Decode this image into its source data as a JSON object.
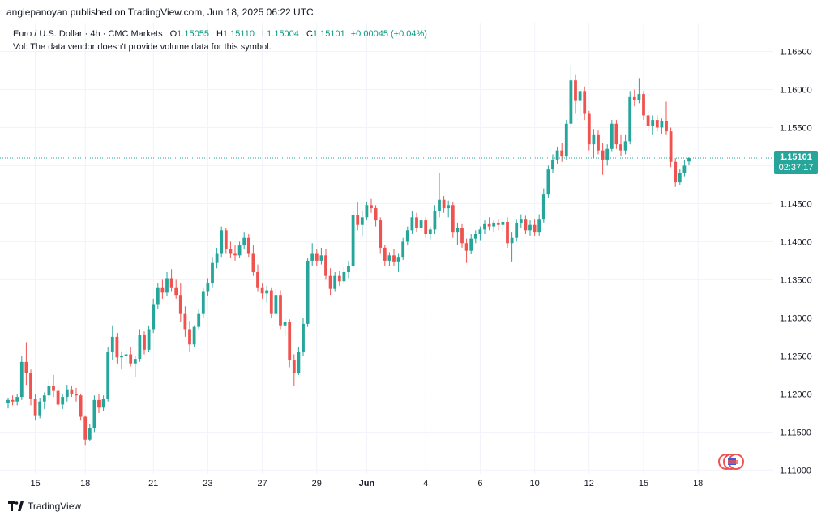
{
  "header": {
    "publisher_line": "angiepanoyan published on TradingView.com, Jun 18, 2025 06:22 UTC"
  },
  "legend": {
    "symbol_line": "Euro / U.S. Dollar · 4h · CMC Markets",
    "o_label": "O",
    "o_value": "1.15055",
    "h_label": "H",
    "h_value": "1.15110",
    "l_label": "L",
    "l_value": "1.15004",
    "c_label": "C",
    "c_value": "1.15101",
    "change": "+0.00045 (+0.04%)",
    "vol_line": "Vol: The data vendor doesn't provide volume data for this symbol."
  },
  "price_tag": {
    "price": "1.15101",
    "countdown": "02:37:17"
  },
  "footer": {
    "brand": "TradingView"
  },
  "colors": {
    "up": "#26a69a",
    "down": "#ef5350",
    "grid": "#f0f3fa",
    "axis_text": "#131722",
    "last_price_line": "#26a69a"
  },
  "chart_data": {
    "type": "candlestick",
    "ylim": [
      1.1095,
      1.1675
    ],
    "y_ticks": [
      1.165,
      1.16,
      1.155,
      1.15,
      1.145,
      1.14,
      1.135,
      1.13,
      1.125,
      1.12,
      1.115,
      1.11
    ],
    "y_tick_labels": [
      "1.16500",
      "1.16000",
      "1.15500",
      "1.15000",
      "1.14500",
      "1.14000",
      "1.13500",
      "1.13000",
      "1.12500",
      "1.12000",
      "1.11500",
      "1.11000"
    ],
    "x_ticks": [
      {
        "label": "15",
        "index": 6
      },
      {
        "label": "18",
        "index": 17
      },
      {
        "label": "21",
        "index": 32
      },
      {
        "label": "23",
        "index": 44
      },
      {
        "label": "27",
        "index": 56
      },
      {
        "label": "29",
        "index": 68
      },
      {
        "label": "Jun",
        "index": 79
      },
      {
        "label": "4",
        "index": 92
      },
      {
        "label": "6",
        "index": 104
      },
      {
        "label": "10",
        "index": 116
      },
      {
        "label": "12",
        "index": 128
      },
      {
        "label": "15",
        "index": 140
      },
      {
        "label": "18",
        "index": 152
      }
    ],
    "last_price": 1.15101,
    "grid": true,
    "candles": [
      [
        1.1188,
        1.1195,
        1.1181,
        1.1192
      ],
      [
        1.1192,
        1.1198,
        1.1185,
        1.119
      ],
      [
        1.119,
        1.12,
        1.1185,
        1.1196
      ],
      [
        1.1196,
        1.125,
        1.1192,
        1.1242
      ],
      [
        1.1242,
        1.1268,
        1.1212,
        1.1228
      ],
      [
        1.1228,
        1.1232,
        1.1185,
        1.1194
      ],
      [
        1.1194,
        1.12,
        1.1165,
        1.1172
      ],
      [
        1.1172,
        1.1195,
        1.1168,
        1.119
      ],
      [
        1.119,
        1.1202,
        1.118,
        1.1198
      ],
      [
        1.1198,
        1.1218,
        1.1192,
        1.121
      ],
      [
        1.121,
        1.1225,
        1.1196,
        1.1204
      ],
      [
        1.1204,
        1.1208,
        1.1182,
        1.1186
      ],
      [
        1.1186,
        1.12,
        1.118,
        1.1196
      ],
      [
        1.1196,
        1.1212,
        1.119,
        1.1206
      ],
      [
        1.1206,
        1.121,
        1.1196,
        1.12
      ],
      [
        1.12,
        1.1208,
        1.119,
        1.1198
      ],
      [
        1.1198,
        1.12,
        1.1165,
        1.117
      ],
      [
        1.117,
        1.1172,
        1.1132,
        1.114
      ],
      [
        1.114,
        1.116,
        1.1138,
        1.1155
      ],
      [
        1.1155,
        1.1198,
        1.115,
        1.1192
      ],
      [
        1.1192,
        1.12,
        1.1175,
        1.1182
      ],
      [
        1.1182,
        1.1198,
        1.1178,
        1.1193
      ],
      [
        1.1193,
        1.1262,
        1.119,
        1.1255
      ],
      [
        1.1255,
        1.129,
        1.1245,
        1.1275
      ],
      [
        1.1275,
        1.128,
        1.124,
        1.1248
      ],
      [
        1.1248,
        1.1256,
        1.1232,
        1.125
      ],
      [
        1.125,
        1.1258,
        1.124,
        1.1252
      ],
      [
        1.1252,
        1.1262,
        1.1236,
        1.124
      ],
      [
        1.124,
        1.125,
        1.1222,
        1.1246
      ],
      [
        1.1246,
        1.1285,
        1.1242,
        1.1278
      ],
      [
        1.1278,
        1.1282,
        1.1252,
        1.1258
      ],
      [
        1.1258,
        1.129,
        1.1255,
        1.1285
      ],
      [
        1.1285,
        1.1325,
        1.128,
        1.1318
      ],
      [
        1.1318,
        1.1345,
        1.1312,
        1.134
      ],
      [
        1.134,
        1.135,
        1.1325,
        1.1333
      ],
      [
        1.1333,
        1.136,
        1.1328,
        1.1352
      ],
      [
        1.1352,
        1.1364,
        1.1335,
        1.134
      ],
      [
        1.134,
        1.135,
        1.1325,
        1.133
      ],
      [
        1.133,
        1.1345,
        1.1295,
        1.1305
      ],
      [
        1.1305,
        1.1315,
        1.1275,
        1.1285
      ],
      [
        1.1285,
        1.1296,
        1.1255,
        1.1265
      ],
      [
        1.1265,
        1.129,
        1.1262,
        1.1288
      ],
      [
        1.1288,
        1.1312,
        1.1285,
        1.1305
      ],
      [
        1.1305,
        1.134,
        1.13,
        1.1335
      ],
      [
        1.1335,
        1.1352,
        1.1328,
        1.1345
      ],
      [
        1.1345,
        1.138,
        1.134,
        1.1372
      ],
      [
        1.1372,
        1.1392,
        1.1365,
        1.1385
      ],
      [
        1.1385,
        1.142,
        1.138,
        1.1415
      ],
      [
        1.1415,
        1.1418,
        1.1385,
        1.139
      ],
      [
        1.139,
        1.14,
        1.1378,
        1.1385
      ],
      [
        1.1385,
        1.1395,
        1.1375,
        1.1382
      ],
      [
        1.1382,
        1.14,
        1.1378,
        1.1395
      ],
      [
        1.1395,
        1.1412,
        1.139,
        1.1405
      ],
      [
        1.1405,
        1.141,
        1.138,
        1.1385
      ],
      [
        1.1385,
        1.1395,
        1.1355,
        1.136
      ],
      [
        1.136,
        1.137,
        1.1335,
        1.134
      ],
      [
        1.134,
        1.1345,
        1.1325,
        1.1332
      ],
      [
        1.1332,
        1.1342,
        1.132,
        1.1336
      ],
      [
        1.1336,
        1.134,
        1.13,
        1.1305
      ],
      [
        1.1305,
        1.1338,
        1.1302,
        1.133
      ],
      [
        1.133,
        1.1336,
        1.1285,
        1.129
      ],
      [
        1.129,
        1.13,
        1.1275,
        1.1295
      ],
      [
        1.1295,
        1.1298,
        1.1235,
        1.1245
      ],
      [
        1.1245,
        1.1252,
        1.121,
        1.1228
      ],
      [
        1.1228,
        1.1262,
        1.1225,
        1.1255
      ],
      [
        1.1255,
        1.13,
        1.125,
        1.1292
      ],
      [
        1.1292,
        1.1378,
        1.1288,
        1.1375
      ],
      [
        1.1375,
        1.1398,
        1.1368,
        1.1385
      ],
      [
        1.1385,
        1.139,
        1.1368,
        1.1375
      ],
      [
        1.1375,
        1.1392,
        1.137,
        1.1382
      ],
      [
        1.1382,
        1.139,
        1.135,
        1.1355
      ],
      [
        1.1355,
        1.1365,
        1.133,
        1.1338
      ],
      [
        1.1338,
        1.136,
        1.1335,
        1.1355
      ],
      [
        1.1355,
        1.1362,
        1.1342,
        1.1348
      ],
      [
        1.1348,
        1.1366,
        1.1344,
        1.136
      ],
      [
        1.136,
        1.1375,
        1.1352,
        1.1368
      ],
      [
        1.1368,
        1.144,
        1.1365,
        1.1435
      ],
      [
        1.1435,
        1.1452,
        1.1415,
        1.1422
      ],
      [
        1.1422,
        1.144,
        1.1408,
        1.1432
      ],
      [
        1.1432,
        1.1452,
        1.1428,
        1.1448
      ],
      [
        1.1448,
        1.1456,
        1.1438,
        1.1444
      ],
      [
        1.1444,
        1.1448,
        1.142,
        1.1428
      ],
      [
        1.1428,
        1.1432,
        1.1385,
        1.1392
      ],
      [
        1.1392,
        1.1396,
        1.1368,
        1.1375
      ],
      [
        1.1375,
        1.1386,
        1.1368,
        1.1382
      ],
      [
        1.1382,
        1.139,
        1.1368,
        1.1374
      ],
      [
        1.1374,
        1.1385,
        1.136,
        1.138
      ],
      [
        1.138,
        1.1405,
        1.1376,
        1.14
      ],
      [
        1.14,
        1.142,
        1.1395,
        1.1415
      ],
      [
        1.1415,
        1.144,
        1.141,
        1.1432
      ],
      [
        1.1432,
        1.1438,
        1.1412,
        1.1418
      ],
      [
        1.1418,
        1.1432,
        1.1414,
        1.1428
      ],
      [
        1.1428,
        1.1432,
        1.1405,
        1.141
      ],
      [
        1.141,
        1.142,
        1.1403,
        1.1416
      ],
      [
        1.1416,
        1.1448,
        1.141,
        1.144
      ],
      [
        1.144,
        1.149,
        1.1432,
        1.1455
      ],
      [
        1.1455,
        1.146,
        1.1438,
        1.1444
      ],
      [
        1.1444,
        1.1454,
        1.1432,
        1.1448
      ],
      [
        1.1448,
        1.1452,
        1.1405,
        1.1412
      ],
      [
        1.1412,
        1.1425,
        1.1396,
        1.1418
      ],
      [
        1.1418,
        1.1424,
        1.1392,
        1.1398
      ],
      [
        1.1398,
        1.1404,
        1.1372,
        1.1388
      ],
      [
        1.1388,
        1.141,
        1.1384,
        1.1404
      ],
      [
        1.1404,
        1.1415,
        1.1398,
        1.141
      ],
      [
        1.141,
        1.142,
        1.1402,
        1.1416
      ],
      [
        1.1416,
        1.1428,
        1.141,
        1.1424
      ],
      [
        1.1424,
        1.1432,
        1.1415,
        1.142
      ],
      [
        1.142,
        1.1428,
        1.1412,
        1.1425
      ],
      [
        1.1425,
        1.143,
        1.1415,
        1.1422
      ],
      [
        1.1422,
        1.143,
        1.1412,
        1.1426
      ],
      [
        1.1426,
        1.1432,
        1.1392,
        1.1398
      ],
      [
        1.1398,
        1.1412,
        1.1374,
        1.1405
      ],
      [
        1.1405,
        1.143,
        1.14,
        1.1425
      ],
      [
        1.1425,
        1.1436,
        1.1418,
        1.143
      ],
      [
        1.143,
        1.1434,
        1.141,
        1.1415
      ],
      [
        1.1415,
        1.1428,
        1.1408,
        1.1422
      ],
      [
        1.1422,
        1.143,
        1.1408,
        1.1412
      ],
      [
        1.1412,
        1.1436,
        1.1408,
        1.143
      ],
      [
        1.143,
        1.147,
        1.1425,
        1.1462
      ],
      [
        1.1462,
        1.15,
        1.1458,
        1.1495
      ],
      [
        1.1495,
        1.1515,
        1.149,
        1.1508
      ],
      [
        1.1508,
        1.1525,
        1.1502,
        1.152
      ],
      [
        1.152,
        1.153,
        1.1505,
        1.1512
      ],
      [
        1.1512,
        1.156,
        1.1508,
        1.1555
      ],
      [
        1.1555,
        1.1632,
        1.155,
        1.1612
      ],
      [
        1.1612,
        1.162,
        1.1568,
        1.1585
      ],
      [
        1.1585,
        1.16,
        1.1565,
        1.1598
      ],
      [
        1.1598,
        1.1604,
        1.156,
        1.1568
      ],
      [
        1.1568,
        1.1572,
        1.152,
        1.1528
      ],
      [
        1.1528,
        1.1548,
        1.151,
        1.154
      ],
      [
        1.154,
        1.1546,
        1.1515,
        1.152
      ],
      [
        1.152,
        1.153,
        1.1488,
        1.1508
      ],
      [
        1.1508,
        1.1528,
        1.15,
        1.1522
      ],
      [
        1.1522,
        1.156,
        1.1518,
        1.1555
      ],
      [
        1.1555,
        1.156,
        1.1522,
        1.1528
      ],
      [
        1.1528,
        1.154,
        1.1512,
        1.152
      ],
      [
        1.152,
        1.154,
        1.1515,
        1.1532
      ],
      [
        1.1532,
        1.1598,
        1.1528,
        1.159
      ],
      [
        1.159,
        1.16,
        1.1578,
        1.1586
      ],
      [
        1.1586,
        1.1615,
        1.1582,
        1.1594
      ],
      [
        1.1594,
        1.1598,
        1.156,
        1.1566
      ],
      [
        1.1566,
        1.1572,
        1.1545,
        1.1552
      ],
      [
        1.1552,
        1.1566,
        1.154,
        1.156
      ],
      [
        1.156,
        1.1566,
        1.1545,
        1.155
      ],
      [
        1.155,
        1.1562,
        1.1542,
        1.1558
      ],
      [
        1.1558,
        1.1584,
        1.154,
        1.1545
      ],
      [
        1.1545,
        1.155,
        1.1498,
        1.1505
      ],
      [
        1.1505,
        1.151,
        1.1472,
        1.1478
      ],
      [
        1.1478,
        1.1495,
        1.1474,
        1.149
      ],
      [
        1.149,
        1.1508,
        1.1486,
        1.15
      ],
      [
        1.15055,
        1.1511,
        1.15004,
        1.15101
      ]
    ]
  }
}
